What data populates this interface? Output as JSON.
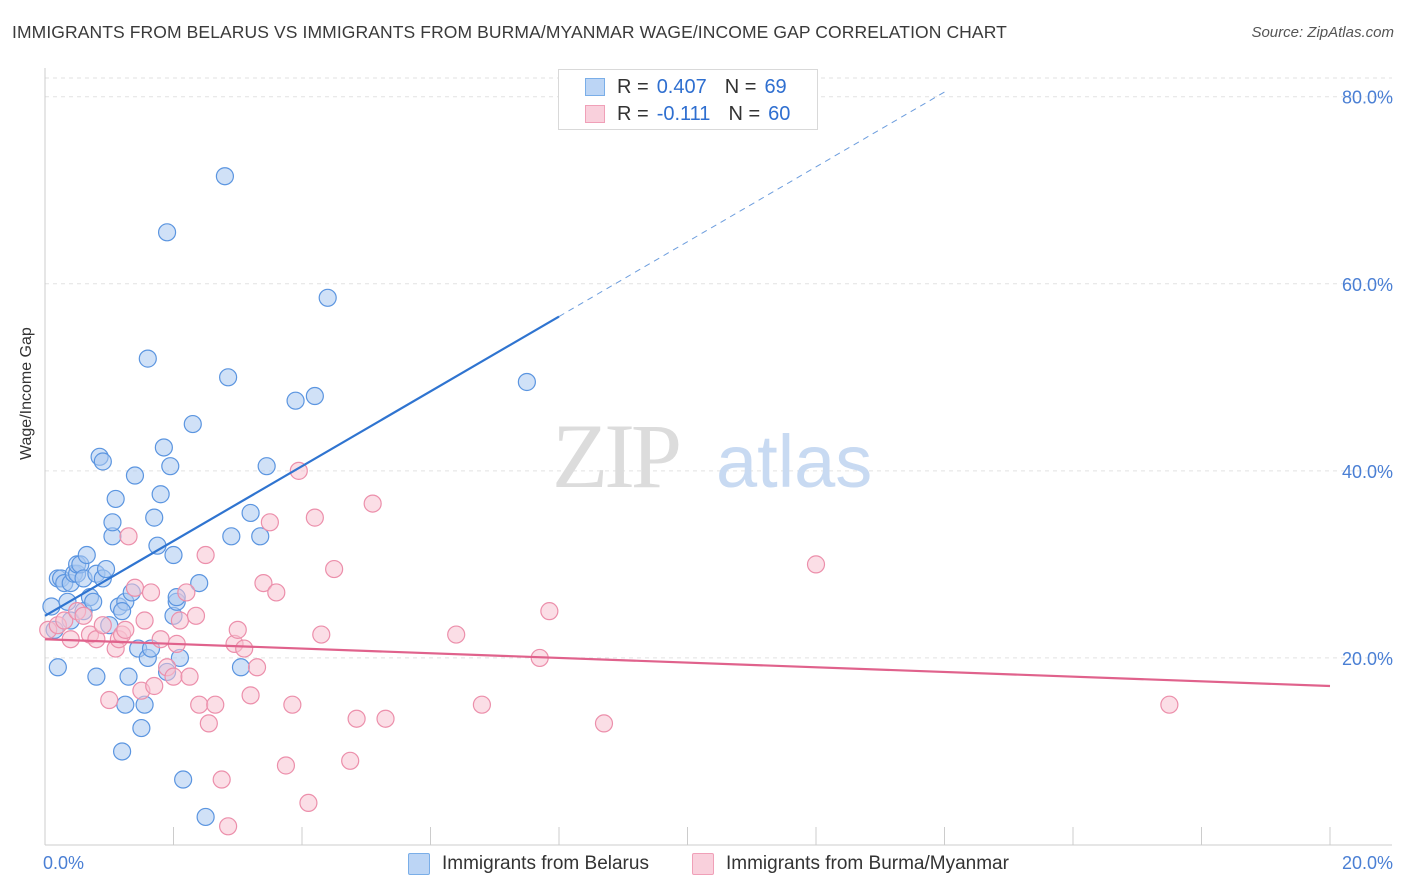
{
  "title": "IMMIGRANTS FROM BELARUS VS IMMIGRANTS FROM BURMA/MYANMAR WAGE/INCOME GAP CORRELATION CHART",
  "source": "Source: ZipAtlas.com",
  "watermark": {
    "zip": "ZIP",
    "atlas": "atlas"
  },
  "legend": {
    "rows": [
      {
        "r_label": "R =",
        "r_value": "0.407",
        "n_label": "N =",
        "n_value": "69",
        "color": "#7aaee8",
        "fill": "#bcd5f5"
      },
      {
        "r_label": "R =",
        "r_value": "-0.111",
        "n_label": "N =",
        "n_value": "60",
        "color": "#f0a0b8",
        "fill": "#f9d0dc"
      }
    ]
  },
  "chart_data": {
    "type": "scatter",
    "title": "IMMIGRANTS FROM BELARUS VS IMMIGRANTS FROM BURMA/MYANMAR WAGE/INCOME GAP CORRELATION CHART",
    "xlabel": "",
    "ylabel": "Wage/Income Gap",
    "xlim": [
      0,
      20
    ],
    "ylim": [
      0,
      82
    ],
    "x_tick_labels": [
      "0.0%",
      "20.0%"
    ],
    "y_ticks": [
      20,
      40,
      60,
      80
    ],
    "y_tick_labels": [
      "20.0%",
      "40.0%",
      "60.0%",
      "80.0%"
    ],
    "grid": true,
    "legend_position": "top-center",
    "series": [
      {
        "name": "Immigrants from Belarus",
        "color": "#5b95e0",
        "fill": "#a9c9f0",
        "trend": {
          "x": [
            0.0,
            8.0
          ],
          "y": [
            24.5,
            56.5
          ],
          "dashed_to": [
            14.0,
            80.5
          ],
          "color": "#2f74d0"
        },
        "points": [
          [
            0.1,
            25.5
          ],
          [
            0.15,
            23.0
          ],
          [
            0.2,
            28.5
          ],
          [
            0.2,
            19.0
          ],
          [
            0.25,
            28.5
          ],
          [
            0.3,
            28.0
          ],
          [
            0.35,
            26.0
          ],
          [
            0.4,
            24.0
          ],
          [
            0.4,
            28.0
          ],
          [
            0.45,
            29.0
          ],
          [
            0.5,
            29.0
          ],
          [
            0.5,
            30.0
          ],
          [
            0.55,
            30.0
          ],
          [
            0.6,
            25.0
          ],
          [
            0.6,
            28.5
          ],
          [
            0.65,
            31.0
          ],
          [
            0.7,
            26.5
          ],
          [
            0.75,
            26.0
          ],
          [
            0.8,
            29.0
          ],
          [
            0.8,
            18.0
          ],
          [
            0.85,
            41.5
          ],
          [
            0.9,
            41.0
          ],
          [
            0.9,
            28.5
          ],
          [
            0.95,
            29.5
          ],
          [
            1.0,
            23.5
          ],
          [
            1.05,
            33.0
          ],
          [
            1.05,
            34.5
          ],
          [
            1.1,
            37.0
          ],
          [
            1.15,
            25.5
          ],
          [
            1.2,
            10.0
          ],
          [
            1.25,
            15.0
          ],
          [
            1.25,
            26.0
          ],
          [
            1.3,
            18.0
          ],
          [
            1.35,
            27.0
          ],
          [
            1.4,
            39.5
          ],
          [
            1.45,
            21.0
          ],
          [
            1.5,
            12.5
          ],
          [
            1.55,
            15.0
          ],
          [
            1.6,
            52.0
          ],
          [
            1.6,
            20.0
          ],
          [
            1.65,
            21.0
          ],
          [
            1.7,
            35.0
          ],
          [
            1.75,
            32.0
          ],
          [
            1.8,
            37.5
          ],
          [
            1.85,
            42.5
          ],
          [
            1.9,
            18.5
          ],
          [
            1.9,
            65.5
          ],
          [
            1.95,
            40.5
          ],
          [
            2.0,
            31.0
          ],
          [
            2.0,
            24.5
          ],
          [
            2.05,
            26.0
          ],
          [
            2.1,
            20.0
          ],
          [
            2.15,
            7.0
          ],
          [
            2.3,
            45.0
          ],
          [
            2.4,
            28.0
          ],
          [
            2.5,
            3.0
          ],
          [
            2.8,
            71.5
          ],
          [
            2.85,
            50.0
          ],
          [
            2.9,
            33.0
          ],
          [
            3.05,
            19.0
          ],
          [
            3.2,
            35.5
          ],
          [
            3.35,
            33.0
          ],
          [
            3.45,
            40.5
          ],
          [
            3.9,
            47.5
          ],
          [
            4.2,
            48.0
          ],
          [
            4.4,
            58.5
          ],
          [
            7.5,
            49.5
          ],
          [
            2.05,
            26.5
          ],
          [
            1.2,
            25.0
          ]
        ]
      },
      {
        "name": "Immigrants from Burma/Myanmar",
        "color": "#ec8fab",
        "fill": "#f7c2d2",
        "trend": {
          "x": [
            0.0,
            20.0
          ],
          "y": [
            22.0,
            17.0
          ],
          "color": "#e0628c"
        },
        "points": [
          [
            0.05,
            23.0
          ],
          [
            0.2,
            23.5
          ],
          [
            0.3,
            24.0
          ],
          [
            0.4,
            22.0
          ],
          [
            0.5,
            25.0
          ],
          [
            0.6,
            24.5
          ],
          [
            0.7,
            22.5
          ],
          [
            0.8,
            22.0
          ],
          [
            0.9,
            23.5
          ],
          [
            1.0,
            15.5
          ],
          [
            1.1,
            21.0
          ],
          [
            1.15,
            22.0
          ],
          [
            1.2,
            22.5
          ],
          [
            1.3,
            33.0
          ],
          [
            1.4,
            27.5
          ],
          [
            1.5,
            16.5
          ],
          [
            1.55,
            24.0
          ],
          [
            1.65,
            27.0
          ],
          [
            1.7,
            17.0
          ],
          [
            1.8,
            22.0
          ],
          [
            1.9,
            19.0
          ],
          [
            2.0,
            18.0
          ],
          [
            2.05,
            21.5
          ],
          [
            2.1,
            24.0
          ],
          [
            2.2,
            27.0
          ],
          [
            2.25,
            18.0
          ],
          [
            2.35,
            24.5
          ],
          [
            2.4,
            15.0
          ],
          [
            2.5,
            31.0
          ],
          [
            2.55,
            13.0
          ],
          [
            2.65,
            15.0
          ],
          [
            2.75,
            7.0
          ],
          [
            2.85,
            2.0
          ],
          [
            2.95,
            21.5
          ],
          [
            3.0,
            23.0
          ],
          [
            3.1,
            21.0
          ],
          [
            3.2,
            16.0
          ],
          [
            3.3,
            19.0
          ],
          [
            3.4,
            28.0
          ],
          [
            3.5,
            34.5
          ],
          [
            3.6,
            27.0
          ],
          [
            3.75,
            8.5
          ],
          [
            3.85,
            15.0
          ],
          [
            3.95,
            40.0
          ],
          [
            4.1,
            4.5
          ],
          [
            4.2,
            35.0
          ],
          [
            4.3,
            22.5
          ],
          [
            4.5,
            29.5
          ],
          [
            4.75,
            9.0
          ],
          [
            4.85,
            13.5
          ],
          [
            5.1,
            36.5
          ],
          [
            5.3,
            13.5
          ],
          [
            6.4,
            22.5
          ],
          [
            6.8,
            15.0
          ],
          [
            7.7,
            20.0
          ],
          [
            7.85,
            25.0
          ],
          [
            8.7,
            13.0
          ],
          [
            12.0,
            30.0
          ],
          [
            17.5,
            15.0
          ],
          [
            1.25,
            23.0
          ]
        ]
      }
    ]
  }
}
